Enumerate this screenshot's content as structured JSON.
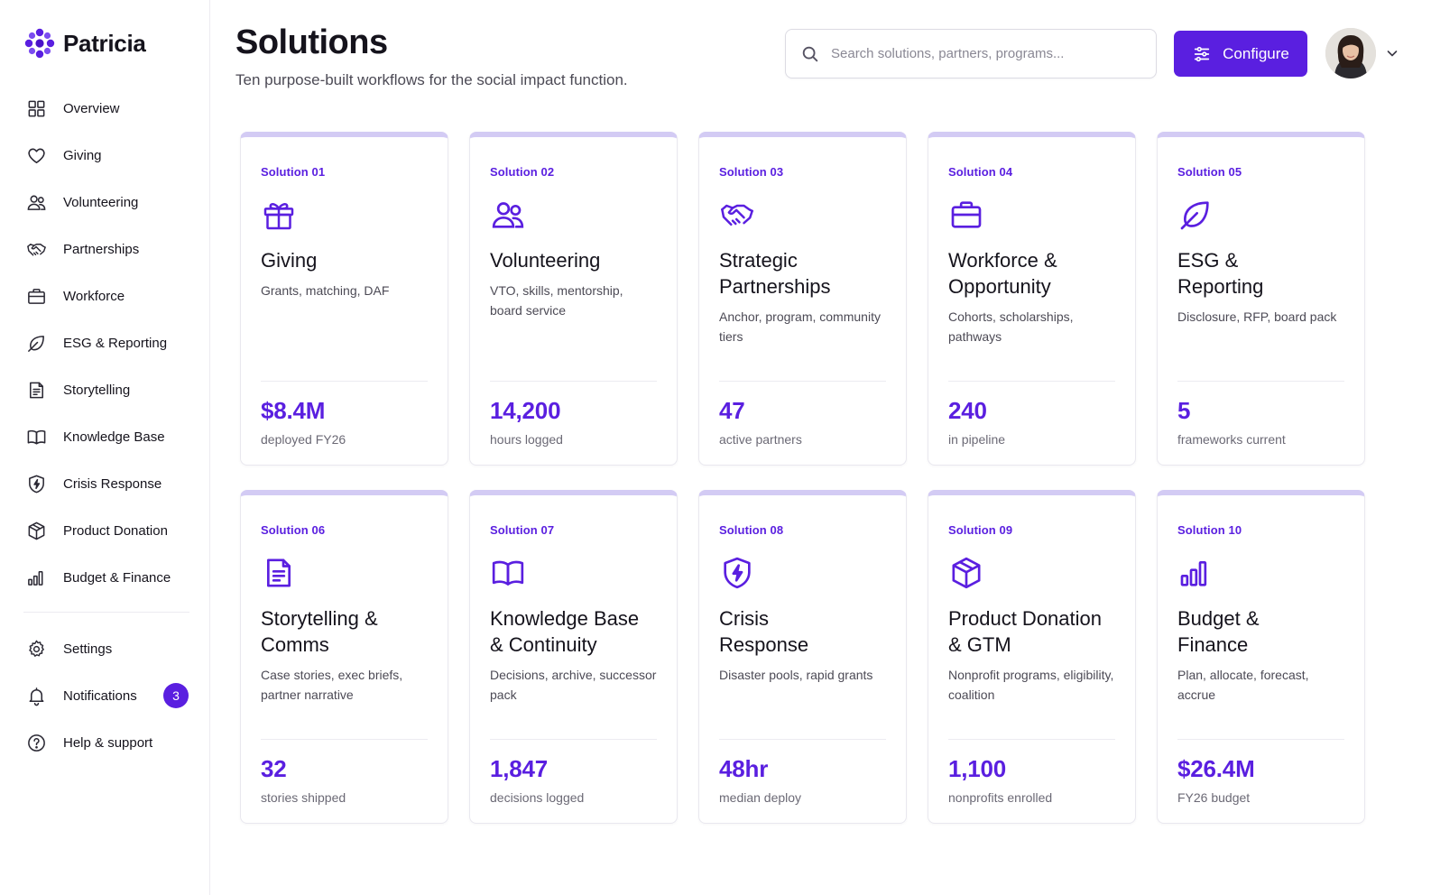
{
  "brand": {
    "name": "Patricia"
  },
  "sidebar": {
    "items": [
      {
        "label": "Overview",
        "icon": "grid-icon"
      },
      {
        "label": "Giving",
        "icon": "heart-icon"
      },
      {
        "label": "Volunteering",
        "icon": "users-icon"
      },
      {
        "label": "Partnerships",
        "icon": "handshake-icon"
      },
      {
        "label": "Workforce",
        "icon": "briefcase-icon"
      },
      {
        "label": "ESG & Reporting",
        "icon": "leaf-icon"
      },
      {
        "label": "Storytelling",
        "icon": "document-icon"
      },
      {
        "label": "Knowledge Base",
        "icon": "book-icon"
      },
      {
        "label": "Crisis Response",
        "icon": "shield-bolt-icon"
      },
      {
        "label": "Product Donation",
        "icon": "box-icon"
      },
      {
        "label": "Budget & Finance",
        "icon": "bar-chart-icon"
      }
    ],
    "footer": [
      {
        "label": "Settings",
        "icon": "gear-icon"
      },
      {
        "label": "Notifications",
        "icon": "bell-icon",
        "badge": "3"
      },
      {
        "label": "Help & support",
        "icon": "help-icon"
      }
    ]
  },
  "header": {
    "title": "Solutions",
    "subtitle": "Ten purpose-built workflows for the social impact function.",
    "search_placeholder": "Search solutions, partners, programs...",
    "configure_label": "Configure"
  },
  "colors": {
    "accent": "#5a1fe0",
    "card_top": "#d3cbf4"
  },
  "cards": [
    {
      "tag": "Solution 01",
      "icon": "gift-icon",
      "title": "Giving",
      "desc": "Grants, matching, DAF",
      "metric": "$8.4M",
      "metric_label": "deployed FY26"
    },
    {
      "tag": "Solution 02",
      "icon": "users-icon",
      "title": "Volunteering",
      "desc": "VTO, skills, mentorship, board service",
      "metric": "14,200",
      "metric_label": "hours logged"
    },
    {
      "tag": "Solution 03",
      "icon": "handshake-icon",
      "title": "Strategic Partnerships",
      "desc": "Anchor, program, community tiers",
      "metric": "47",
      "metric_label": "active partners"
    },
    {
      "tag": "Solution 04",
      "icon": "briefcase-icon",
      "title": "Workforce & Opportunity",
      "desc": "Cohorts, scholarships, pathways",
      "metric": "240",
      "metric_label": "in pipeline"
    },
    {
      "tag": "Solution 05",
      "icon": "leaf-icon",
      "title": "ESG & Reporting",
      "desc": "Disclosure, RFP, board pack",
      "metric": "5",
      "metric_label": "frameworks current"
    },
    {
      "tag": "Solution 06",
      "icon": "document-icon",
      "title": "Storytelling & Comms",
      "desc": "Case stories, exec briefs, partner narrative",
      "metric": "32",
      "metric_label": "stories shipped"
    },
    {
      "tag": "Solution 07",
      "icon": "book-icon",
      "title": "Knowledge Base & Continuity",
      "desc": "Decisions, archive, successor pack",
      "metric": "1,847",
      "metric_label": "decisions logged"
    },
    {
      "tag": "Solution 08",
      "icon": "shield-bolt-icon",
      "title": "Crisis Response",
      "desc": "Disaster pools, rapid grants",
      "metric": "48hr",
      "metric_label": "median deploy"
    },
    {
      "tag": "Solution 09",
      "icon": "box-icon",
      "title": "Product Donation & GTM",
      "desc": "Nonprofit programs, eligibility, coalition",
      "metric": "1,100",
      "metric_label": "nonprofits enrolled"
    },
    {
      "tag": "Solution 10",
      "icon": "bar-chart-icon",
      "title": "Budget & Finance",
      "desc": "Plan, allocate, forecast, accrue",
      "metric": "$26.4M",
      "metric_label": "FY26 budget"
    }
  ]
}
